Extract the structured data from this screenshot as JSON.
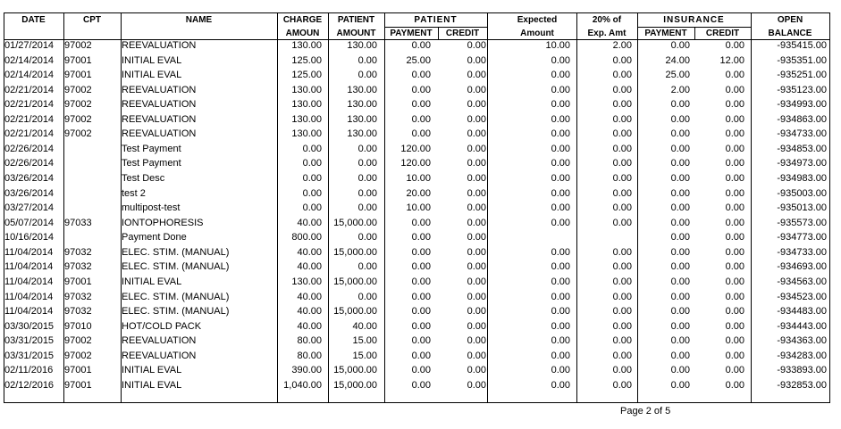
{
  "header": {
    "date": "DATE",
    "cpt": "CPT",
    "name": "NAME",
    "charge": [
      "CHARGE",
      "AMOUN"
    ],
    "patient_amount": [
      "PATIENT",
      "AMOUNT"
    ],
    "patient": "PATIENT",
    "patient_payment": "PAYMENT",
    "patient_credit": "CREDIT",
    "expected": [
      "Expected",
      "Amount"
    ],
    "pct": [
      "20% of",
      "Exp. Amt"
    ],
    "insurance": "INSURANCE",
    "insurance_payment": "PAYMENT",
    "insurance_credit": "CREDIT",
    "open_balance": [
      "OPEN",
      "BALANCE"
    ]
  },
  "table": {
    "rows": [
      [
        "01/27/2014",
        "97002",
        "REEVALUATION",
        "130.00",
        "130.00",
        "0.00",
        "0.00",
        "10.00",
        "2.00",
        "0.00",
        "0.00",
        "-935415.00"
      ],
      [
        "02/14/2014",
        "97001",
        "INITIAL EVAL",
        "125.00",
        "0.00",
        "25.00",
        "0.00",
        "0.00",
        "0.00",
        "24.00",
        "12.00",
        "-935351.00"
      ],
      [
        "02/14/2014",
        "97001",
        "INITIAL EVAL",
        "125.00",
        "0.00",
        "0.00",
        "0.00",
        "0.00",
        "0.00",
        "25.00",
        "0.00",
        "-935251.00"
      ],
      [
        "02/21/2014",
        "97002",
        "REEVALUATION",
        "130.00",
        "130.00",
        "0.00",
        "0.00",
        "0.00",
        "0.00",
        "2.00",
        "0.00",
        "-935123.00"
      ],
      [
        "02/21/2014",
        "97002",
        "REEVALUATION",
        "130.00",
        "130.00",
        "0.00",
        "0.00",
        "0.00",
        "0.00",
        "0.00",
        "0.00",
        "-934993.00"
      ],
      [
        "02/21/2014",
        "97002",
        "REEVALUATION",
        "130.00",
        "130.00",
        "0.00",
        "0.00",
        "0.00",
        "0.00",
        "0.00",
        "0.00",
        "-934863.00"
      ],
      [
        "02/21/2014",
        "97002",
        "REEVALUATION",
        "130.00",
        "130.00",
        "0.00",
        "0.00",
        "0.00",
        "0.00",
        "0.00",
        "0.00",
        "-934733.00"
      ],
      [
        "02/26/2014",
        null,
        "Test Payment",
        "0.00",
        "0.00",
        "120.00",
        "0.00",
        "0.00",
        "0.00",
        "0.00",
        "0.00",
        "-934853.00"
      ],
      [
        "02/26/2014",
        null,
        "Test Payment",
        "0.00",
        "0.00",
        "120.00",
        "0.00",
        "0.00",
        "0.00",
        "0.00",
        "0.00",
        "-934973.00"
      ],
      [
        "03/26/2014",
        null,
        "Test Desc",
        "0.00",
        "0.00",
        "10.00",
        "0.00",
        "0.00",
        "0.00",
        "0.00",
        "0.00",
        "-934983.00"
      ],
      [
        "03/26/2014",
        null,
        "test 2",
        "0.00",
        "0.00",
        "20.00",
        "0.00",
        "0.00",
        "0.00",
        "0.00",
        "0.00",
        "-935003.00"
      ],
      [
        "03/27/2014",
        null,
        "multipost-test",
        "0.00",
        "0.00",
        "10.00",
        "0.00",
        "0.00",
        "0.00",
        "0.00",
        "0.00",
        "-935013.00"
      ],
      [
        "05/07/2014",
        "97033",
        "IONTOPHORESIS",
        "40.00",
        "15,000.00",
        "0.00",
        "0.00",
        "0.00",
        "0.00",
        "0.00",
        "0.00",
        "-935573.00"
      ],
      [
        "10/16/2014",
        null,
        "Payment Done",
        "800.00",
        "0.00",
        "0.00",
        "0.00",
        null,
        null,
        "0.00",
        "0.00",
        "-934773.00"
      ],
      [
        "11/04/2014",
        "97032",
        "ELEC. STIM. (MANUAL)",
        "40.00",
        "15,000.00",
        "0.00",
        "0.00",
        "0.00",
        "0.00",
        "0.00",
        "0.00",
        "-934733.00"
      ],
      [
        "11/04/2014",
        "97032",
        "ELEC. STIM. (MANUAL)",
        "40.00",
        "0.00",
        "0.00",
        "0.00",
        "0.00",
        "0.00",
        "0.00",
        "0.00",
        "-934693.00"
      ],
      [
        "11/04/2014",
        "97001",
        "INITIAL EVAL",
        "130.00",
        "15,000.00",
        "0.00",
        "0.00",
        "0.00",
        "0.00",
        "0.00",
        "0.00",
        "-934563.00"
      ],
      [
        "11/04/2014",
        "97032",
        "ELEC. STIM. (MANUAL)",
        "40.00",
        "0.00",
        "0.00",
        "0.00",
        "0.00",
        "0.00",
        "0.00",
        "0.00",
        "-934523.00"
      ],
      [
        "11/04/2014",
        "97032",
        "ELEC. STIM. (MANUAL)",
        "40.00",
        "15,000.00",
        "0.00",
        "0.00",
        "0.00",
        "0.00",
        "0.00",
        "0.00",
        "-934483.00"
      ],
      [
        "03/30/2015",
        "97010",
        "HOT/COLD PACK",
        "40.00",
        "40.00",
        "0.00",
        "0.00",
        "0.00",
        "0.00",
        "0.00",
        "0.00",
        "-934443.00"
      ],
      [
        "03/31/2015",
        "97002",
        "REEVALUATION",
        "80.00",
        "15.00",
        "0.00",
        "0.00",
        "0.00",
        "0.00",
        "0.00",
        "0.00",
        "-934363.00"
      ],
      [
        "03/31/2015",
        "97002",
        "REEVALUATION",
        "80.00",
        "15.00",
        "0.00",
        "0.00",
        "0.00",
        "0.00",
        "0.00",
        "0.00",
        "-934283.00"
      ],
      [
        "02/11/2016",
        "97001",
        "INITIAL EVAL",
        "390.00",
        "15,000.00",
        "0.00",
        "0.00",
        "0.00",
        "0.00",
        "0.00",
        "0.00",
        "-933893.00"
      ],
      [
        "02/12/2016",
        "97001",
        "INITIAL EVAL",
        "1,040.00",
        "15,000.00",
        "0.00",
        "0.00",
        "0.00",
        "0.00",
        "0.00",
        "0.00",
        "-932853.00"
      ]
    ]
  },
  "footer": {
    "page": "Page 2 of 5"
  }
}
